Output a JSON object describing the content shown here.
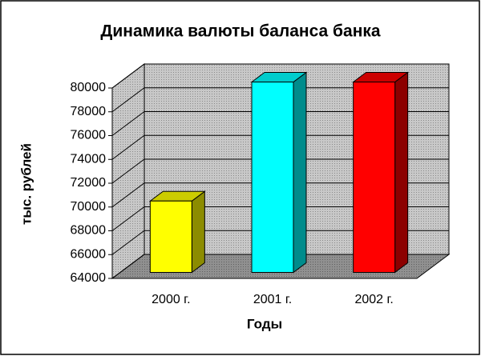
{
  "chart_data": {
    "type": "bar3d",
    "title": "Динамика валюты баланса банка",
    "categories": [
      "2000 г.",
      "2001 г.",
      "2002 г."
    ],
    "values": [
      70000,
      80000,
      80000
    ],
    "colors": [
      "#ffff00",
      "#00ffff",
      "#ff0000"
    ],
    "x_label": "Годы",
    "y_label": "тыс. рублей",
    "ylim": [
      64000,
      80000
    ],
    "yticks": [
      64000,
      66000,
      68000,
      70000,
      72000,
      74000,
      76000,
      78000,
      80000
    ],
    "grid": true
  }
}
